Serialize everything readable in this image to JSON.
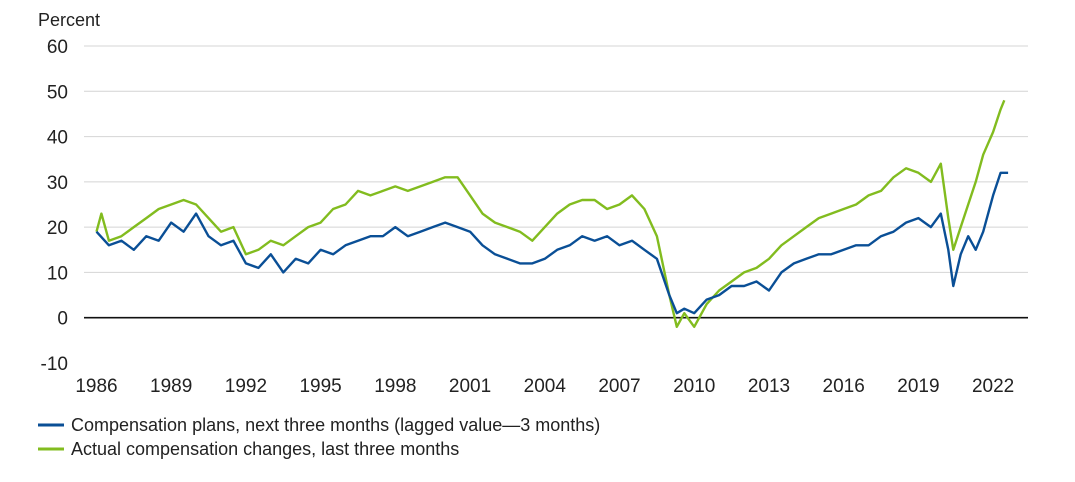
{
  "chart_data": {
    "type": "line",
    "ylabel": "Percent",
    "ylim": [
      -10,
      60
    ],
    "y_ticks": [
      60,
      50,
      40,
      30,
      20,
      10,
      0,
      -10
    ],
    "x_ticks": [
      1986,
      1989,
      1992,
      1995,
      1998,
      2001,
      2004,
      2007,
      2010,
      2013,
      2016,
      2019,
      2022
    ],
    "xlim": [
      1985.5,
      2023.4
    ],
    "grid": true,
    "zero_line": true,
    "legend_position": "bottom-left",
    "series": [
      {
        "name": "Compensation plans, next three months (lagged value—3 months)",
        "color": "#0a4f96",
        "points": [
          [
            1986.0,
            19
          ],
          [
            1986.5,
            16
          ],
          [
            1987.0,
            17
          ],
          [
            1987.5,
            15
          ],
          [
            1988.0,
            18
          ],
          [
            1988.5,
            17
          ],
          [
            1989.0,
            21
          ],
          [
            1989.5,
            19
          ],
          [
            1990.0,
            23
          ],
          [
            1990.5,
            18
          ],
          [
            1991.0,
            16
          ],
          [
            1991.5,
            17
          ],
          [
            1992.0,
            12
          ],
          [
            1992.5,
            11
          ],
          [
            1993.0,
            14
          ],
          [
            1993.5,
            10
          ],
          [
            1994.0,
            13
          ],
          [
            1994.5,
            12
          ],
          [
            1995.0,
            15
          ],
          [
            1995.5,
            14
          ],
          [
            1996.0,
            16
          ],
          [
            1996.5,
            17
          ],
          [
            1997.0,
            18
          ],
          [
            1997.5,
            18
          ],
          [
            1998.0,
            20
          ],
          [
            1998.5,
            18
          ],
          [
            1999.0,
            19
          ],
          [
            1999.5,
            20
          ],
          [
            2000.0,
            21
          ],
          [
            2000.5,
            20
          ],
          [
            2001.0,
            19
          ],
          [
            2001.5,
            16
          ],
          [
            2002.0,
            14
          ],
          [
            2002.5,
            13
          ],
          [
            2003.0,
            12
          ],
          [
            2003.5,
            12
          ],
          [
            2004.0,
            13
          ],
          [
            2004.5,
            15
          ],
          [
            2005.0,
            16
          ],
          [
            2005.5,
            18
          ],
          [
            2006.0,
            17
          ],
          [
            2006.5,
            18
          ],
          [
            2007.0,
            16
          ],
          [
            2007.5,
            17
          ],
          [
            2008.0,
            15
          ],
          [
            2008.5,
            13
          ],
          [
            2009.0,
            5
          ],
          [
            2009.3,
            1
          ],
          [
            2009.6,
            2
          ],
          [
            2010.0,
            1
          ],
          [
            2010.5,
            4
          ],
          [
            2011.0,
            5
          ],
          [
            2011.5,
            7
          ],
          [
            2012.0,
            7
          ],
          [
            2012.5,
            8
          ],
          [
            2013.0,
            6
          ],
          [
            2013.5,
            10
          ],
          [
            2014.0,
            12
          ],
          [
            2014.5,
            13
          ],
          [
            2015.0,
            14
          ],
          [
            2015.5,
            14
          ],
          [
            2016.0,
            15
          ],
          [
            2016.5,
            16
          ],
          [
            2017.0,
            16
          ],
          [
            2017.5,
            18
          ],
          [
            2018.0,
            19
          ],
          [
            2018.5,
            21
          ],
          [
            2019.0,
            22
          ],
          [
            2019.5,
            20
          ],
          [
            2019.9,
            23
          ],
          [
            2020.2,
            15
          ],
          [
            2020.4,
            7
          ],
          [
            2020.7,
            14
          ],
          [
            2021.0,
            18
          ],
          [
            2021.3,
            15
          ],
          [
            2021.6,
            19
          ],
          [
            2022.0,
            27
          ],
          [
            2022.3,
            32
          ],
          [
            2022.6,
            32
          ]
        ]
      },
      {
        "name": "Actual compensation changes, last three months",
        "color": "#82bc1f",
        "points": [
          [
            1986.0,
            19
          ],
          [
            1986.2,
            23
          ],
          [
            1986.5,
            17
          ],
          [
            1987.0,
            18
          ],
          [
            1987.5,
            20
          ],
          [
            1988.0,
            22
          ],
          [
            1988.5,
            24
          ],
          [
            1989.0,
            25
          ],
          [
            1989.5,
            26
          ],
          [
            1990.0,
            25
          ],
          [
            1990.5,
            22
          ],
          [
            1991.0,
            19
          ],
          [
            1991.5,
            20
          ],
          [
            1992.0,
            14
          ],
          [
            1992.5,
            15
          ],
          [
            1993.0,
            17
          ],
          [
            1993.5,
            16
          ],
          [
            1994.0,
            18
          ],
          [
            1994.5,
            20
          ],
          [
            1995.0,
            21
          ],
          [
            1995.5,
            24
          ],
          [
            1996.0,
            25
          ],
          [
            1996.5,
            28
          ],
          [
            1997.0,
            27
          ],
          [
            1997.5,
            28
          ],
          [
            1998.0,
            29
          ],
          [
            1998.5,
            28
          ],
          [
            1999.0,
            29
          ],
          [
            1999.5,
            30
          ],
          [
            2000.0,
            31
          ],
          [
            2000.5,
            31
          ],
          [
            2001.0,
            27
          ],
          [
            2001.5,
            23
          ],
          [
            2002.0,
            21
          ],
          [
            2002.5,
            20
          ],
          [
            2003.0,
            19
          ],
          [
            2003.5,
            17
          ],
          [
            2004.0,
            20
          ],
          [
            2004.5,
            23
          ],
          [
            2005.0,
            25
          ],
          [
            2005.5,
            26
          ],
          [
            2006.0,
            26
          ],
          [
            2006.5,
            24
          ],
          [
            2007.0,
            25
          ],
          [
            2007.5,
            27
          ],
          [
            2008.0,
            24
          ],
          [
            2008.5,
            18
          ],
          [
            2009.0,
            5
          ],
          [
            2009.3,
            -2
          ],
          [
            2009.6,
            1
          ],
          [
            2010.0,
            -2
          ],
          [
            2010.5,
            3
          ],
          [
            2011.0,
            6
          ],
          [
            2011.5,
            8
          ],
          [
            2012.0,
            10
          ],
          [
            2012.5,
            11
          ],
          [
            2013.0,
            13
          ],
          [
            2013.5,
            16
          ],
          [
            2014.0,
            18
          ],
          [
            2014.5,
            20
          ],
          [
            2015.0,
            22
          ],
          [
            2015.5,
            23
          ],
          [
            2016.0,
            24
          ],
          [
            2016.5,
            25
          ],
          [
            2017.0,
            27
          ],
          [
            2017.5,
            28
          ],
          [
            2018.0,
            31
          ],
          [
            2018.5,
            33
          ],
          [
            2019.0,
            32
          ],
          [
            2019.5,
            30
          ],
          [
            2019.9,
            34
          ],
          [
            2020.2,
            22
          ],
          [
            2020.4,
            15
          ],
          [
            2020.7,
            20
          ],
          [
            2021.0,
            25
          ],
          [
            2021.3,
            30
          ],
          [
            2021.6,
            36
          ],
          [
            2022.0,
            41
          ],
          [
            2022.3,
            46
          ],
          [
            2022.45,
            48
          ]
        ]
      }
    ]
  }
}
